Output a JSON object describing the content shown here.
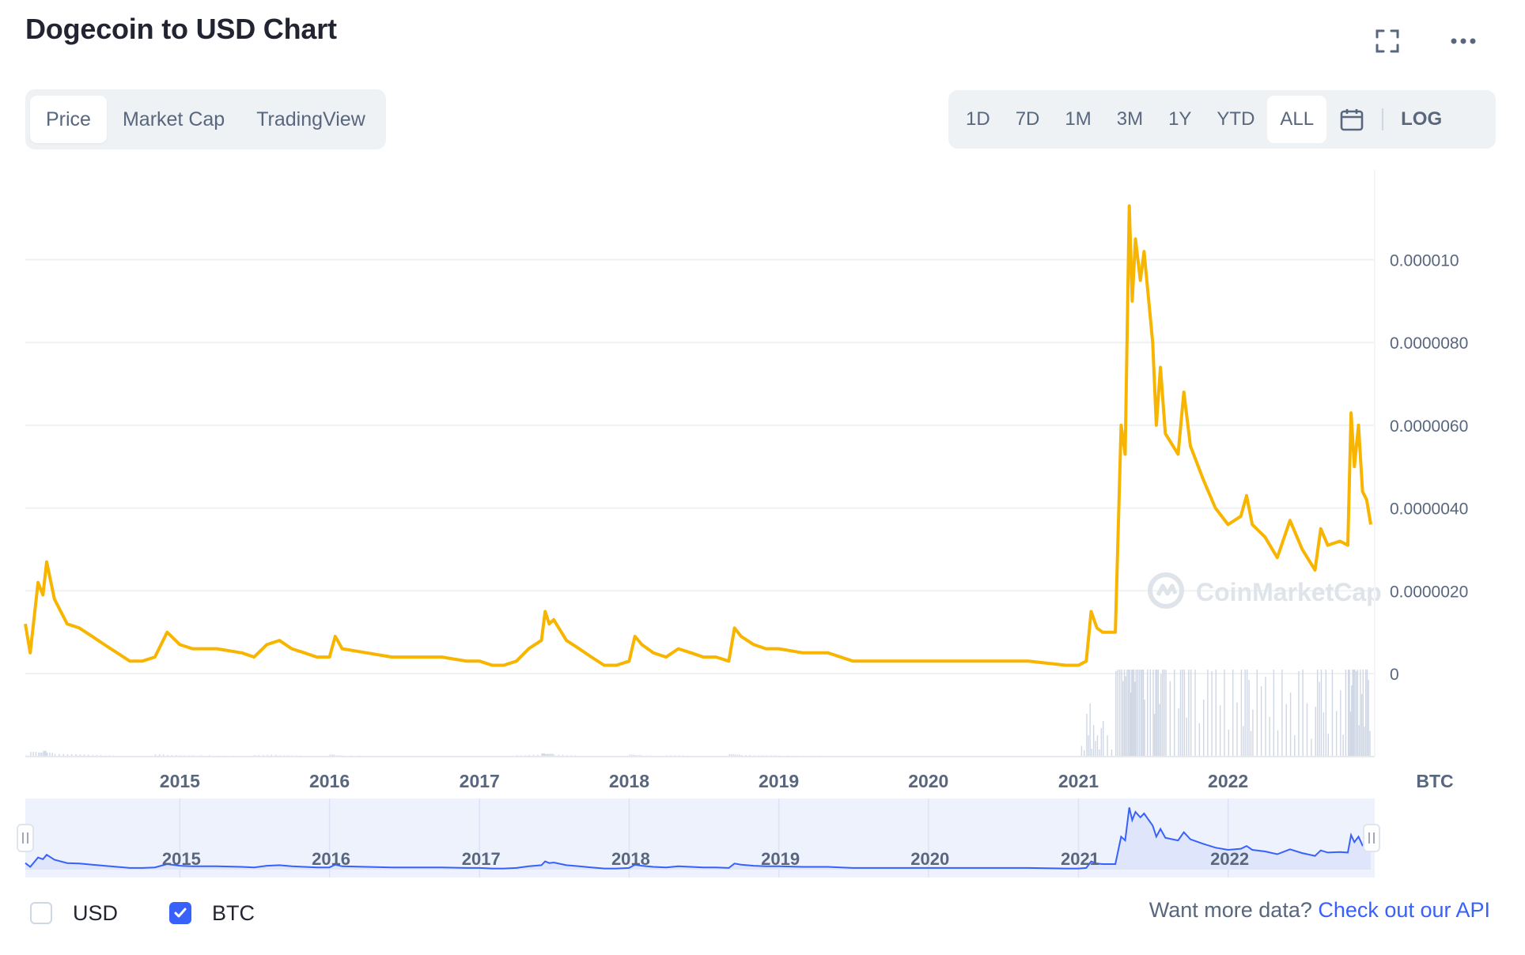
{
  "header": {
    "title": "Dogecoin to USD Chart"
  },
  "icons": {
    "fullscreen": "fullscreen-icon",
    "more": "more-options-icon",
    "calendar": "calendar-icon"
  },
  "tabs": [
    {
      "label": "Price",
      "active": true
    },
    {
      "label": "Market Cap",
      "active": false
    },
    {
      "label": "TradingView",
      "active": false
    }
  ],
  "ranges": [
    {
      "label": "1D",
      "active": false
    },
    {
      "label": "7D",
      "active": false
    },
    {
      "label": "1M",
      "active": false
    },
    {
      "label": "3M",
      "active": false
    },
    {
      "label": "1Y",
      "active": false
    },
    {
      "label": "YTD",
      "active": false
    },
    {
      "label": "ALL",
      "active": true
    }
  ],
  "scale_toggle": {
    "label": "LOG"
  },
  "watermark": "CoinMarketCap",
  "currency_toggles": [
    {
      "label": "USD",
      "checked": false
    },
    {
      "label": "BTC",
      "checked": true
    }
  ],
  "footer": {
    "prompt": "Want more data?",
    "link": "Check out our API"
  },
  "colors": {
    "price_line": "#f7b500",
    "navigator_line": "#3861fb",
    "accent": "#3861fb",
    "grid": "#eff2f5"
  },
  "chart_data": {
    "type": "line",
    "currency_label": "BTC",
    "x_start": "2013-12-20",
    "x_end": "2022-12-15",
    "xticks": [
      "2015",
      "2016",
      "2017",
      "2018",
      "2019",
      "2020",
      "2021",
      "2022"
    ],
    "ylim": [
      0,
      1.15e-05
    ],
    "yticks": [
      {
        "label": "0",
        "value": 0
      },
      {
        "label": "0.0000020",
        "value": 2e-06
      },
      {
        "label": "0.0000040",
        "value": 4e-06
      },
      {
        "label": "0.0000060",
        "value": 6e-06
      },
      {
        "label": "0.0000080",
        "value": 8e-06
      },
      {
        "label": "0.000010",
        "value": 1e-05
      }
    ],
    "series": [
      {
        "values": [
          [
            "2013-12-20",
            1.2e-06
          ],
          [
            "2014-01-01",
            5e-07
          ],
          [
            "2014-01-20",
            2.2e-06
          ],
          [
            "2014-02-01",
            1.9e-06
          ],
          [
            "2014-02-10",
            2.7e-06
          ],
          [
            "2014-03-01",
            1.8e-06
          ],
          [
            "2014-04-01",
            1.2e-06
          ],
          [
            "2014-05-01",
            1.1e-06
          ],
          [
            "2014-06-01",
            9e-07
          ],
          [
            "2014-07-01",
            7e-07
          ],
          [
            "2014-08-01",
            5e-07
          ],
          [
            "2014-09-01",
            3e-07
          ],
          [
            "2014-10-01",
            3e-07
          ],
          [
            "2014-11-01",
            4e-07
          ],
          [
            "2014-12-01",
            1e-06
          ],
          [
            "2015-01-01",
            7e-07
          ],
          [
            "2015-02-01",
            6e-07
          ],
          [
            "2015-04-01",
            6e-07
          ],
          [
            "2015-06-01",
            5e-07
          ],
          [
            "2015-07-01",
            4e-07
          ],
          [
            "2015-08-01",
            7e-07
          ],
          [
            "2015-09-01",
            8e-07
          ],
          [
            "2015-10-01",
            6e-07
          ],
          [
            "2015-11-01",
            5e-07
          ],
          [
            "2015-12-01",
            4e-07
          ],
          [
            "2016-01-01",
            4e-07
          ],
          [
            "2016-01-15",
            9e-07
          ],
          [
            "2016-02-01",
            6e-07
          ],
          [
            "2016-04-01",
            5e-07
          ],
          [
            "2016-06-01",
            4e-07
          ],
          [
            "2016-08-01",
            4e-07
          ],
          [
            "2016-10-01",
            4e-07
          ],
          [
            "2016-12-01",
            3e-07
          ],
          [
            "2017-01-01",
            3e-07
          ],
          [
            "2017-02-01",
            2e-07
          ],
          [
            "2017-03-01",
            2e-07
          ],
          [
            "2017-04-01",
            3e-07
          ],
          [
            "2017-05-01",
            6e-07
          ],
          [
            "2017-06-01",
            8e-07
          ],
          [
            "2017-06-10",
            1.5e-06
          ],
          [
            "2017-06-20",
            1.2e-06
          ],
          [
            "2017-07-01",
            1.3e-06
          ],
          [
            "2017-08-01",
            8e-07
          ],
          [
            "2017-09-01",
            6e-07
          ],
          [
            "2017-10-01",
            4e-07
          ],
          [
            "2017-11-01",
            2e-07
          ],
          [
            "2017-12-01",
            2e-07
          ],
          [
            "2018-01-01",
            3e-07
          ],
          [
            "2018-01-15",
            9e-07
          ],
          [
            "2018-02-01",
            7e-07
          ],
          [
            "2018-03-01",
            5e-07
          ],
          [
            "2018-04-01",
            4e-07
          ],
          [
            "2018-05-01",
            6e-07
          ],
          [
            "2018-06-01",
            5e-07
          ],
          [
            "2018-07-01",
            4e-07
          ],
          [
            "2018-08-01",
            4e-07
          ],
          [
            "2018-09-01",
            3e-07
          ],
          [
            "2018-09-15",
            1.1e-06
          ],
          [
            "2018-10-01",
            9e-07
          ],
          [
            "2018-11-01",
            7e-07
          ],
          [
            "2018-12-01",
            6e-07
          ],
          [
            "2019-01-01",
            6e-07
          ],
          [
            "2019-03-01",
            5e-07
          ],
          [
            "2019-05-01",
            5e-07
          ],
          [
            "2019-06-01",
            4e-07
          ],
          [
            "2019-07-01",
            3e-07
          ],
          [
            "2019-09-01",
            3e-07
          ],
          [
            "2019-12-01",
            3e-07
          ],
          [
            "2020-03-01",
            3e-07
          ],
          [
            "2020-06-01",
            3e-07
          ],
          [
            "2020-09-01",
            3e-07
          ],
          [
            "2020-12-01",
            2e-07
          ],
          [
            "2021-01-01",
            2e-07
          ],
          [
            "2021-01-20",
            3e-07
          ],
          [
            "2021-02-01",
            1.5e-06
          ],
          [
            "2021-02-15",
            1.1e-06
          ],
          [
            "2021-03-01",
            1e-06
          ],
          [
            "2021-04-01",
            1e-06
          ],
          [
            "2021-04-15",
            6e-06
          ],
          [
            "2021-04-25",
            5.3e-06
          ],
          [
            "2021-05-05",
            1.13e-05
          ],
          [
            "2021-05-12",
            9e-06
          ],
          [
            "2021-05-20",
            1.05e-05
          ],
          [
            "2021-06-01",
            9.5e-06
          ],
          [
            "2021-06-10",
            1.02e-05
          ],
          [
            "2021-07-01",
            8e-06
          ],
          [
            "2021-07-10",
            6e-06
          ],
          [
            "2021-07-20",
            7.4e-06
          ],
          [
            "2021-08-01",
            5.8e-06
          ],
          [
            "2021-09-01",
            5.3e-06
          ],
          [
            "2021-09-15",
            6.8e-06
          ],
          [
            "2021-10-01",
            5.5e-06
          ],
          [
            "2021-11-01",
            4.7e-06
          ],
          [
            "2021-12-01",
            4e-06
          ],
          [
            "2022-01-01",
            3.6e-06
          ],
          [
            "2022-02-01",
            3.8e-06
          ],
          [
            "2022-02-15",
            4.3e-06
          ],
          [
            "2022-03-01",
            3.6e-06
          ],
          [
            "2022-04-01",
            3.3e-06
          ],
          [
            "2022-05-01",
            2.8e-06
          ],
          [
            "2022-06-01",
            3.7e-06
          ],
          [
            "2022-07-01",
            3e-06
          ],
          [
            "2022-08-01",
            2.5e-06
          ],
          [
            "2022-08-15",
            3.5e-06
          ],
          [
            "2022-09-01",
            3.1e-06
          ],
          [
            "2022-10-01",
            3.2e-06
          ],
          [
            "2022-10-20",
            3.1e-06
          ],
          [
            "2022-10-28",
            6.3e-06
          ],
          [
            "2022-11-05",
            5e-06
          ],
          [
            "2022-11-15",
            6e-06
          ],
          [
            "2022-11-25",
            4.4e-06
          ],
          [
            "2022-12-05",
            4.2e-06
          ],
          [
            "2022-12-15",
            3.6e-06
          ]
        ]
      }
    ]
  }
}
